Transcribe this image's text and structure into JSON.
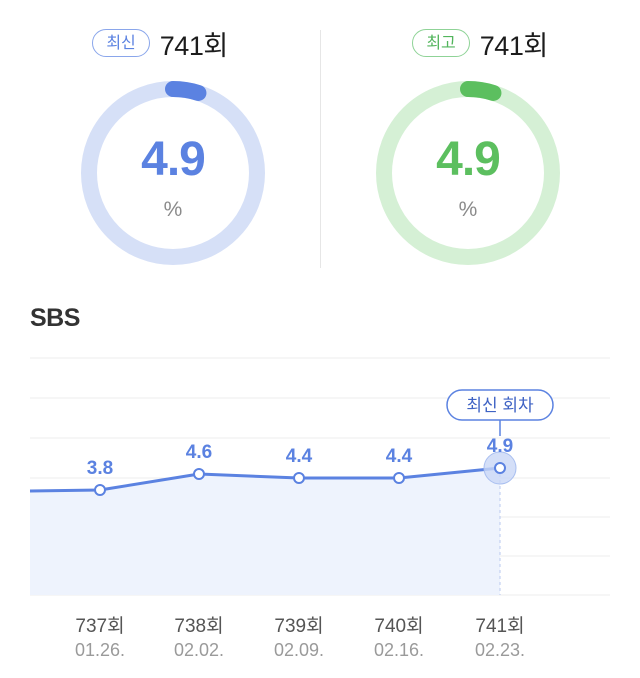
{
  "summary": {
    "latest": {
      "badge": "최신",
      "episode": "741회",
      "value": "4.9",
      "unit": "%",
      "fraction": 0.049,
      "color": "#5b82e1",
      "track_color": "#d6e0f7"
    },
    "best": {
      "badge": "최고",
      "episode": "741회",
      "value": "4.9",
      "unit": "%",
      "fraction": 0.049,
      "color": "#5cbf5f",
      "track_color": "#d5f0d5"
    }
  },
  "section": {
    "title": "SBS"
  },
  "chart_data": {
    "type": "line",
    "categories": [
      "737회",
      "738회",
      "739회",
      "740회",
      "741회"
    ],
    "dates": [
      "01.26.",
      "02.02.",
      "02.09.",
      "02.16.",
      "02.23."
    ],
    "values": [
      3.8,
      4.6,
      4.4,
      4.4,
      4.9
    ],
    "value_labels": [
      "3.8",
      "4.6",
      "4.4",
      "4.4",
      "4.9"
    ],
    "callout": "최신 회차",
    "grid": true,
    "line_color": "#5b82e1",
    "area_color": "#eef3fd"
  }
}
